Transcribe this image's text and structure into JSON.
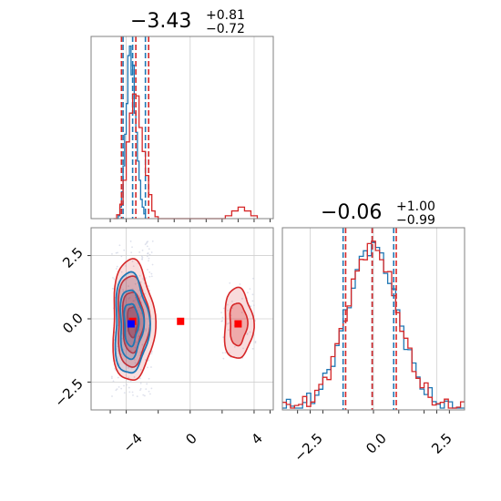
{
  "chart_data": [
    {
      "panel": "top-left",
      "type": "histogram",
      "title": {
        "median": "−3.43",
        "plus": "+0.81",
        "minus": "−0.72"
      },
      "xlim": [
        -6.2,
        5.2
      ],
      "xticks": [
        -4,
        0,
        4
      ],
      "grid": true,
      "series": [
        {
          "color": "#1f77b4",
          "quantiles": [
            -4.2,
            -3.6,
            -2.8
          ],
          "bins": [
            [
              -4.6,
              0
            ],
            [
              -4.5,
              3
            ],
            [
              -4.4,
              12
            ],
            [
              -4.3,
              28
            ],
            [
              -4.2,
              55
            ],
            [
              -4.1,
              88
            ],
            [
              -4.0,
              120
            ],
            [
              -3.9,
              170
            ],
            [
              -3.8,
              180
            ],
            [
              -3.7,
              150
            ],
            [
              -3.6,
              160
            ],
            [
              -3.5,
              110
            ],
            [
              -3.4,
              90
            ],
            [
              -3.3,
              60
            ],
            [
              -3.2,
              40
            ],
            [
              -3.1,
              20
            ],
            [
              -3.0,
              12
            ],
            [
              -2.9,
              5
            ],
            [
              -2.8,
              0
            ]
          ]
        },
        {
          "color": "#d62728",
          "quantiles": [
            -4.3,
            -3.4,
            -2.6
          ],
          "bins": [
            [
              -4.8,
              0
            ],
            [
              -4.6,
              4
            ],
            [
              -4.4,
              15
            ],
            [
              -4.2,
              40
            ],
            [
              -4.0,
              80
            ],
            [
              -3.8,
              110
            ],
            [
              -3.6,
              130
            ],
            [
              -3.4,
              128
            ],
            [
              -3.2,
              95
            ],
            [
              -3.0,
              70
            ],
            [
              -2.8,
              45
            ],
            [
              -2.6,
              25
            ],
            [
              -2.4,
              8
            ],
            [
              -2.2,
              2
            ],
            [
              -2.0,
              0
            ],
            [
              1.8,
              0
            ],
            [
              2.2,
              3
            ],
            [
              2.6,
              8
            ],
            [
              3.0,
              12
            ],
            [
              3.4,
              8
            ],
            [
              3.8,
              3
            ],
            [
              4.2,
              0
            ]
          ]
        }
      ]
    },
    {
      "panel": "bottom-left",
      "type": "contour",
      "xlim": [
        -6.2,
        5.2
      ],
      "ylim": [
        -3.6,
        3.6
      ],
      "xticks": [
        "−4",
        "0",
        "4"
      ],
      "xtick_values": [
        -4,
        0,
        4
      ],
      "yticks": [
        "−2.5",
        "0.0",
        "2.5"
      ],
      "ytick_values": [
        -2.5,
        0,
        2.5
      ],
      "grid": true,
      "series": [
        {
          "color": "#1f77b4",
          "center": [
            -3.7,
            -0.2
          ],
          "spread": [
            0.55,
            1.05
          ]
        },
        {
          "color": "#d62728",
          "center": [
            -3.6,
            -0.1
          ],
          "spread": [
            0.65,
            1.2
          ],
          "extra_center": [
            3.0,
            -0.2
          ],
          "extra_spread": [
            0.45,
            0.7
          ],
          "marker": [
            -0.6,
            -0.1
          ]
        }
      ]
    },
    {
      "panel": "bottom-right",
      "type": "histogram",
      "title": {
        "median": "−0.06",
        "plus": "+1.00",
        "minus": "−0.99"
      },
      "xlim": [
        -3.6,
        3.6
      ],
      "xticks": [
        "−2.5",
        "0.0",
        "2.5"
      ],
      "xtick_values": [
        -2.5,
        0,
        2.5
      ],
      "grid": true,
      "series": [
        {
          "color": "#1f77b4",
          "quantiles": [
            -1.2,
            -0.05,
            0.8
          ]
        },
        {
          "color": "#d62728",
          "quantiles": [
            -1.1,
            -0.05,
            0.9
          ]
        }
      ]
    }
  ]
}
